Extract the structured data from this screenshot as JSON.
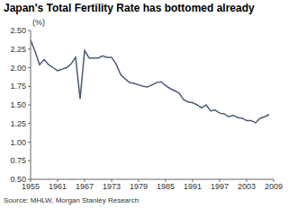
{
  "chart_data": {
    "type": "line",
    "title": "Japan's Total Fertility Rate has bottomed already",
    "y_label": "(%)",
    "source": "Source: MHLW, Morgan Stanley Research",
    "x": [
      1955,
      1956,
      1957,
      1958,
      1959,
      1960,
      1961,
      1962,
      1963,
      1964,
      1965,
      1966,
      1967,
      1968,
      1969,
      1970,
      1971,
      1972,
      1973,
      1974,
      1975,
      1976,
      1977,
      1978,
      1979,
      1980,
      1981,
      1982,
      1983,
      1984,
      1985,
      1986,
      1987,
      1988,
      1989,
      1990,
      1991,
      1992,
      1993,
      1994,
      1995,
      1996,
      1997,
      1998,
      1999,
      2000,
      2001,
      2002,
      2003,
      2004,
      2005,
      2006,
      2007,
      2008
    ],
    "values": [
      2.37,
      2.22,
      2.04,
      2.11,
      2.04,
      2.0,
      1.96,
      1.98,
      2.0,
      2.05,
      2.14,
      1.58,
      2.23,
      2.13,
      2.13,
      2.13,
      2.16,
      2.14,
      2.14,
      2.05,
      1.91,
      1.85,
      1.8,
      1.79,
      1.77,
      1.75,
      1.74,
      1.77,
      1.8,
      1.81,
      1.76,
      1.72,
      1.69,
      1.66,
      1.57,
      1.54,
      1.53,
      1.5,
      1.46,
      1.5,
      1.42,
      1.43,
      1.39,
      1.38,
      1.34,
      1.36,
      1.33,
      1.32,
      1.29,
      1.29,
      1.26,
      1.32,
      1.34,
      1.37
    ],
    "color": "#4b5a78",
    "xlim": [
      1955,
      2009
    ],
    "xticks": [
      1955,
      1961,
      1967,
      1973,
      1979,
      1985,
      1991,
      1997,
      2003,
      2009
    ],
    "ylim": [
      0.5,
      2.5
    ],
    "yticks": [
      {
        "value": 0.5,
        "label": "0.50"
      },
      0.75,
      {
        "value": 1.0,
        "label": "1.00"
      },
      1.25,
      {
        "value": 1.5,
        "label": "1.50"
      },
      1.75,
      {
        "value": 2.0,
        "label": "2.00"
      },
      2.25,
      {
        "value": 2.5,
        "label": "2.50"
      }
    ],
    "grid": false
  }
}
